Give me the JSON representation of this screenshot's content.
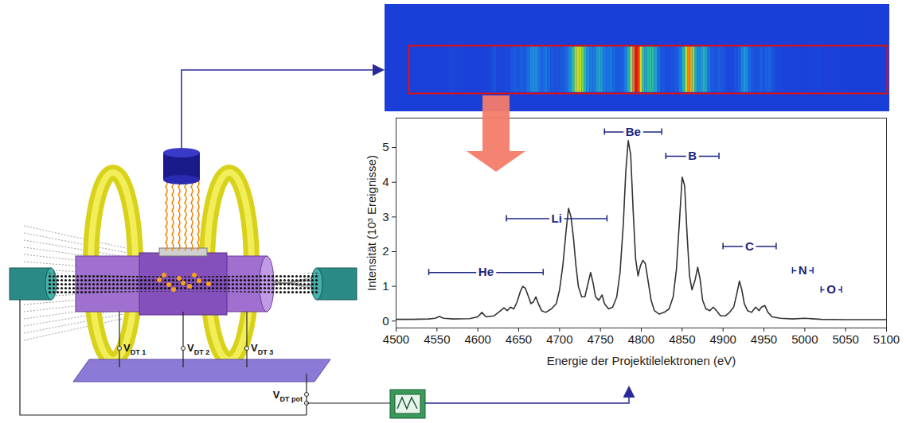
{
  "chart_data": {
    "type": "line",
    "color": "#333333",
    "xlabel": "Energie der Projektilelektronen (eV)",
    "ylabel": "Intensität (10³ Ereignisse)",
    "xlim": [
      4500,
      5100
    ],
    "xticks": [
      4500,
      4550,
      4600,
      4650,
      4700,
      4750,
      4800,
      4850,
      4900,
      4950,
      5000,
      5050,
      5100
    ],
    "ylim": [
      -0.2,
      5.85
    ],
    "yticks": [
      0,
      1,
      2,
      3,
      4,
      5
    ],
    "x": [
      4500,
      4520,
      4540,
      4548,
      4553,
      4558,
      4570,
      4590,
      4600,
      4605,
      4610,
      4620,
      4628,
      4632,
      4636,
      4640,
      4644,
      4648,
      4652,
      4655,
      4658,
      4662,
      4665,
      4668,
      4671,
      4674,
      4678,
      4683,
      4690,
      4696,
      4700,
      4704,
      4708,
      4711,
      4714,
      4717,
      4720,
      4723,
      4727,
      4731,
      4735,
      4738,
      4741,
      4744,
      4748,
      4752,
      4755,
      4760,
      4765,
      4770,
      4774,
      4778,
      4781,
      4784,
      4787,
      4790,
      4793,
      4796,
      4799,
      4802,
      4805,
      4808,
      4812,
      4816,
      4822,
      4828,
      4834,
      4839,
      4843,
      4847,
      4850,
      4853,
      4856,
      4859,
      4862,
      4866,
      4869,
      4872,
      4875,
      4879,
      4884,
      4888,
      4892,
      4897,
      4903,
      4908,
      4913,
      4917,
      4920,
      4923,
      4926,
      4930,
      4935,
      4940,
      4944,
      4947,
      4951,
      4955,
      4960,
      4970,
      4985,
      5000,
      5020,
      5050,
      5080,
      5100
    ],
    "values": [
      0.05,
      0.05,
      0.06,
      0.08,
      0.13,
      0.08,
      0.06,
      0.07,
      0.12,
      0.25,
      0.12,
      0.15,
      0.3,
      0.38,
      0.3,
      0.4,
      0.35,
      0.55,
      0.85,
      1.0,
      0.95,
      0.7,
      0.5,
      0.55,
      0.7,
      0.5,
      0.3,
      0.25,
      0.35,
      0.5,
      0.9,
      1.6,
      2.6,
      3.25,
      3.0,
      2.4,
      1.6,
      1.0,
      0.7,
      0.7,
      1.1,
      1.4,
      1.1,
      0.7,
      0.6,
      0.75,
      0.5,
      0.35,
      0.4,
      0.7,
      1.4,
      2.8,
      4.3,
      5.2,
      4.8,
      3.2,
      1.8,
      1.3,
      1.6,
      1.75,
      1.65,
      1.2,
      0.6,
      0.3,
      0.2,
      0.25,
      0.35,
      0.7,
      1.5,
      3.0,
      4.15,
      3.9,
      2.5,
      1.3,
      0.9,
      1.2,
      1.55,
      1.2,
      0.6,
      0.35,
      0.3,
      0.4,
      0.3,
      0.15,
      0.15,
      0.25,
      0.4,
      0.8,
      1.15,
      0.9,
      0.5,
      0.3,
      0.25,
      0.4,
      0.3,
      0.4,
      0.45,
      0.25,
      0.12,
      0.08,
      0.06,
      0.08,
      0.05,
      0.04,
      0.04,
      0.04
    ],
    "annotations": [
      {
        "text": "He",
        "x1": 4540,
        "x2": 4680,
        "y": 1.4
      },
      {
        "text": "Li",
        "x1": 4635,
        "x2": 4758,
        "y": 2.95
      },
      {
        "text": "Be",
        "x1": 4755,
        "x2": 4825,
        "y": 5.45
      },
      {
        "text": "B",
        "x1": 4830,
        "x2": 4895,
        "y": 4.75
      },
      {
        "text": "C",
        "x1": 4900,
        "x2": 4965,
        "y": 2.15
      },
      {
        "text": "N",
        "x1": 4985,
        "x2": 5010,
        "y": 1.45
      },
      {
        "text": "O",
        "x1": 5020,
        "x2": 5045,
        "y": 0.9
      }
    ]
  },
  "diagram": {
    "voltages": [
      {
        "main": "V",
        "sub": "DT 1"
      },
      {
        "main": "V",
        "sub": "DT 2"
      },
      {
        "main": "V",
        "sub": "DT 3"
      }
    ],
    "potential": {
      "main": "V",
      "sub": "DT pot"
    }
  }
}
